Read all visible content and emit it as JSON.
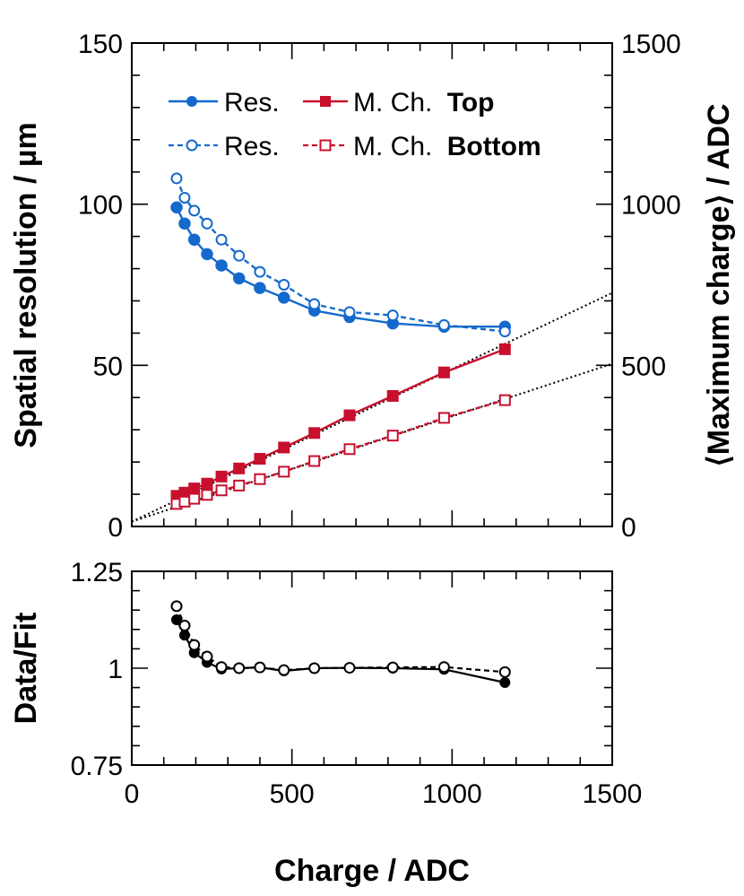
{
  "chart_data": [
    {
      "type": "line",
      "panel": "top",
      "xlabel": "Charge / ADC",
      "ylabel": "Spatial resolution / µm",
      "ylabel_right": "⟨Maximum charge⟩ / ADC",
      "xlim": [
        0,
        1500
      ],
      "ylim": [
        0,
        150
      ],
      "ylim_right": [
        0,
        1500
      ],
      "xticks": [
        0,
        500,
        1000,
        1500
      ],
      "yticks": [
        0,
        50,
        100,
        150
      ],
      "yticks_right": [
        0,
        500,
        1000,
        1500
      ],
      "legend": {
        "placement": "top-left",
        "row1": {
          "res_label": "Res.",
          "mch_label": "M. Ch.",
          "tag": "Top"
        },
        "row2": {
          "res_label": "Res.",
          "mch_label": "M. Ch.",
          "tag": "Bottom"
        }
      },
      "colors": {
        "resolution": "#1469cc",
        "max_charge": "#c8102e",
        "fit": "#000000"
      },
      "x": [
        140,
        165,
        195,
        235,
        280,
        335,
        400,
        475,
        570,
        680,
        815,
        975,
        1165
      ],
      "series": [
        {
          "name": "Res. Top",
          "axis": "left",
          "style": "solid",
          "marker": "filled-circle",
          "values": [
            99,
            94,
            89,
            84.5,
            81,
            77,
            74,
            71,
            67,
            65,
            63,
            62,
            62
          ]
        },
        {
          "name": "Res. Bottom",
          "axis": "left",
          "style": "dashed",
          "marker": "open-circle",
          "values": [
            108,
            102,
            98,
            94,
            89,
            84,
            79,
            75,
            69,
            66.5,
            65.5,
            62.5,
            60.5
          ]
        },
        {
          "name": "M. Ch. Top",
          "axis": "right",
          "style": "solid",
          "marker": "filled-square",
          "values": [
            95,
            105,
            118,
            133,
            155,
            180,
            210,
            245,
            290,
            345,
            405,
            478,
            550
          ]
        },
        {
          "name": "M. Ch. Bottom",
          "axis": "right",
          "style": "dashed",
          "marker": "open-square",
          "values": [
            70,
            77,
            86,
            98,
            112,
            127,
            147,
            170,
            203,
            240,
            282,
            337,
            392
          ]
        }
      ],
      "fits": [
        {
          "name": "fit Top",
          "points": [
            [
              0,
              15
            ],
            [
              1500,
              725
            ]
          ]
        },
        {
          "name": "fit Bottom",
          "points": [
            [
              0,
              15
            ],
            [
              1500,
              505
            ]
          ]
        }
      ]
    },
    {
      "type": "line",
      "panel": "bottom",
      "xlabel": "Charge / ADC",
      "ylabel": "Data/Fit",
      "xlim": [
        0,
        1500
      ],
      "ylim": [
        0.75,
        1.25
      ],
      "xticks": [
        0,
        500,
        1000,
        1500
      ],
      "yticks": [
        0.75,
        1,
        1.25
      ],
      "ytick_labels": [
        "0.75",
        "1",
        "1.25"
      ],
      "x": [
        140,
        165,
        195,
        235,
        280,
        335,
        400,
        475,
        570,
        680,
        815,
        975,
        1165
      ],
      "series": [
        {
          "name": "Top",
          "style": "solid",
          "marker": "filled-circle",
          "values": [
            1.125,
            1.085,
            1.04,
            1.015,
            0.998,
            1.0,
            1.002,
            0.993,
            1.0,
            1.001,
            1.0,
            0.997,
            0.963
          ]
        },
        {
          "name": "Bottom",
          "style": "dashed",
          "marker": "open-circle",
          "values": [
            1.16,
            1.11,
            1.06,
            1.03,
            1.003,
            1.0,
            1.002,
            0.995,
            1.0,
            1.001,
            1.002,
            1.003,
            0.99
          ]
        }
      ]
    }
  ]
}
